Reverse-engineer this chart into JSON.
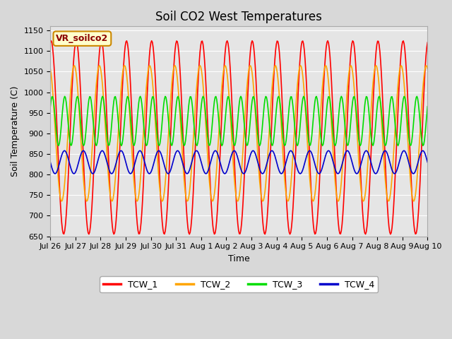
{
  "title": "Soil CO2 West Temperatures",
  "ylabel": "Soil Temperature (C)",
  "xlabel": "Time",
  "annotation": "VR_soilco2",
  "ylim": [
    650,
    1160
  ],
  "yticks": [
    650,
    700,
    750,
    800,
    850,
    900,
    950,
    1000,
    1050,
    1100,
    1150
  ],
  "total_days": 15,
  "num_points": 500,
  "series": [
    {
      "name": "TCW_1",
      "color": "#ff0000",
      "mean": 890,
      "amp": 235,
      "phase": 0.22,
      "period": 1.0
    },
    {
      "name": "TCW_2",
      "color": "#ffa500",
      "mean": 900,
      "amp": 165,
      "phase": 0.3,
      "period": 1.0
    },
    {
      "name": "TCW_3",
      "color": "#00dd00",
      "mean": 930,
      "amp": 60,
      "phase": 0.1,
      "period": 0.5
    },
    {
      "name": "TCW_4",
      "color": "#0000cc",
      "mean": 830,
      "amp": 28,
      "phase": 0.5,
      "period": 0.75
    }
  ],
  "xtick_labels": [
    "Jul 26",
    "Jul 27",
    "Jul 28",
    "Jul 29",
    "Jul 30",
    "Jul 31",
    "Aug 1",
    "Aug 2",
    "Aug 3",
    "Aug 4",
    "Aug 5",
    "Aug 6",
    "Aug 7",
    "Aug 8",
    "Aug 9",
    "Aug 10"
  ],
  "background_color": "#e5e5e5",
  "fig_background": "#d8d8d8",
  "grid_color": "#ffffff",
  "legend_colors": [
    "#ff0000",
    "#ffa500",
    "#00dd00",
    "#0000cc"
  ],
  "legend_labels": [
    "TCW_1",
    "TCW_2",
    "TCW_3",
    "TCW_4"
  ],
  "linewidth": 1.2,
  "title_fontsize": 12,
  "label_fontsize": 9,
  "tick_fontsize": 8
}
